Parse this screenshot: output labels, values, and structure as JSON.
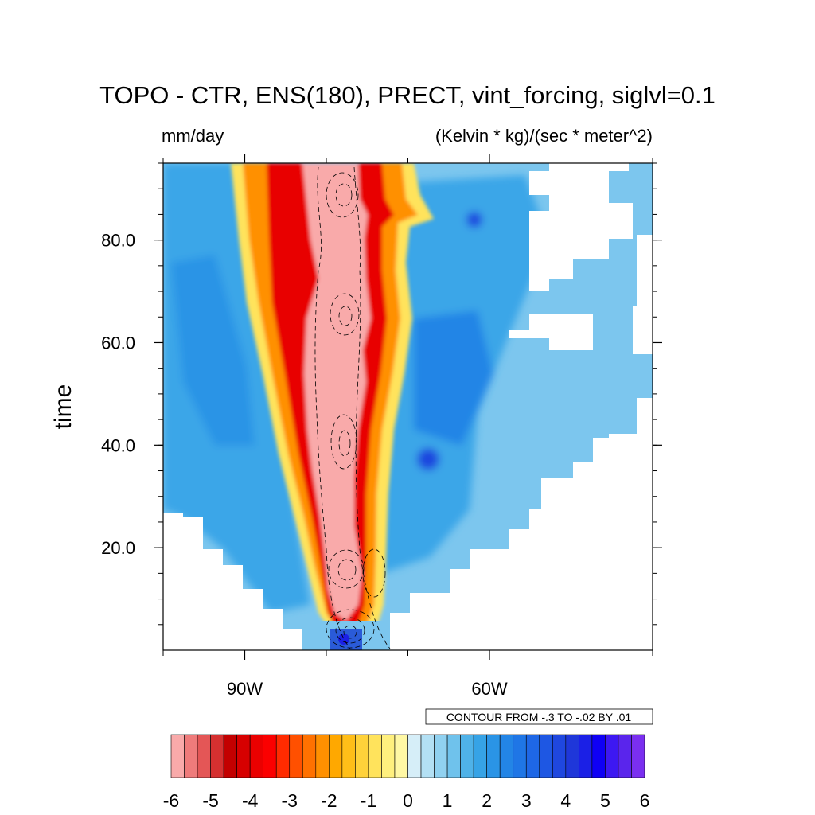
{
  "chart_data": {
    "type": "heatmap",
    "title": "TOPO - CTR, ENS(180), PRECT, vint_forcing, siglvl=0.1",
    "left_unit": "mm/day",
    "right_unit": "(Kelvin * kg)/(sec * meter^2)",
    "xlabel": "",
    "ylabel": "time",
    "xlim": [
      -100,
      -40
    ],
    "ylim": [
      0,
      95
    ],
    "x_ticks": [
      {
        "value": -90,
        "label": "90W"
      },
      {
        "value": -60,
        "label": "60W"
      }
    ],
    "y_ticks": [
      {
        "value": 20,
        "label": "20.0"
      },
      {
        "value": 40,
        "label": "40.0"
      },
      {
        "value": 60,
        "label": "60.0"
      },
      {
        "value": 80,
        "label": "80.0"
      }
    ],
    "contour_note": "CONTOUR FROM -.3 TO -.02 BY .01",
    "colorbar": {
      "range": [
        -6,
        6
      ],
      "labels": [
        "-6",
        "-5",
        "-4",
        "-3",
        "-2",
        "-1",
        "0",
        "1",
        "2",
        "3",
        "4",
        "5",
        "6"
      ],
      "colors": [
        "#f9aaaa",
        "#ef7b7b",
        "#e45656",
        "#d53030",
        "#c30000",
        "#d70000",
        "#ea0000",
        "#fb0000",
        "#ff2b00",
        "#ff5000",
        "#ff7100",
        "#ff9000",
        "#ffa800",
        "#ffbe18",
        "#ffd23a",
        "#ffe35c",
        "#fff07e",
        "#fff8a4",
        "#d6eef8",
        "#b3e0f4",
        "#90d1f0",
        "#6fc2ec",
        "#4fb2e8",
        "#36a3e6",
        "#2a94e6",
        "#2385e6",
        "#1f76e6",
        "#1e67e6",
        "#1e57e3",
        "#1f47df",
        "#1f37d9",
        "#1b20e6",
        "#0f00f5",
        "#3d18f2",
        "#5a25ec",
        "#7a2ff0"
      ]
    },
    "grid": false,
    "legend": "bottom"
  }
}
